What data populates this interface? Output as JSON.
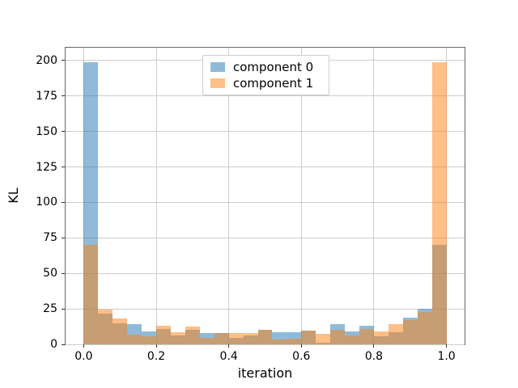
{
  "chart_data": {
    "type": "histogram-bar",
    "title": "",
    "xlabel": "iteration",
    "ylabel": "KL",
    "xlim": [
      -0.05,
      1.05
    ],
    "ylim": [
      0,
      209
    ],
    "grid": true,
    "legend_position": "upper center",
    "yticks": [
      0,
      25,
      50,
      75,
      100,
      125,
      150,
      175,
      200
    ],
    "ytick_labels": [
      "0",
      "25",
      "50",
      "75",
      "100",
      "125",
      "150",
      "175",
      "200"
    ],
    "xtick_values": [
      0.0,
      0.2,
      0.4,
      0.6,
      0.8,
      1.0
    ],
    "xtick_labels": [
      "0.0",
      "0.2",
      "0.4",
      "0.6",
      "0.8",
      "1.0"
    ],
    "bins": {
      "start": 0.0,
      "end": 1.0,
      "count": 25,
      "width": 0.04
    },
    "series": [
      {
        "name": "component 0",
        "color": "#1f77b4",
        "alpha": 0.5,
        "values": [
          199,
          21.5,
          15,
          14.5,
          9,
          11,
          6.5,
          10,
          8,
          8,
          4.5,
          6,
          10.5,
          8.5,
          8.5,
          9.5,
          1,
          14,
          9,
          13,
          5.5,
          8.5,
          19,
          25,
          70
        ]
      },
      {
        "name": "component 1",
        "color": "#ff7f0e",
        "alpha": 0.5,
        "values": [
          70,
          24.5,
          18,
          7,
          5.5,
          13,
          8.5,
          12.5,
          4.5,
          8,
          8,
          8,
          10.5,
          3.5,
          4,
          9.5,
          7.5,
          10,
          6,
          11,
          9,
          14.5,
          17,
          23,
          199
        ]
      }
    ]
  }
}
